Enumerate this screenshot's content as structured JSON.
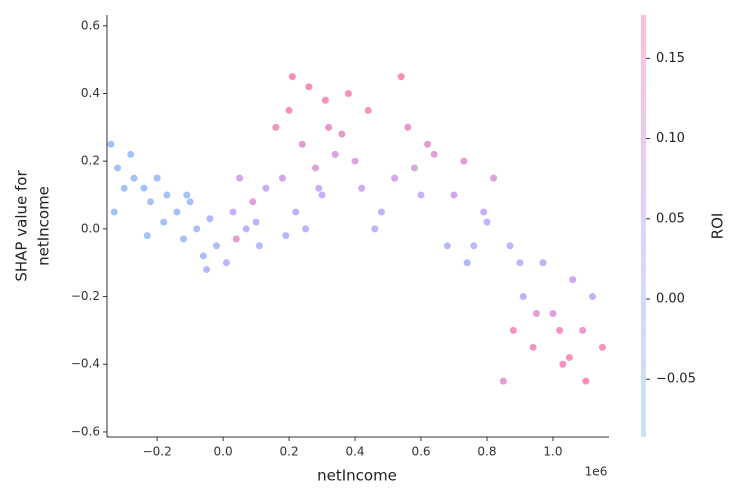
{
  "chart_data": {
    "type": "scatter",
    "xlabel": "netIncome",
    "ylabel": [
      "SHAP value for",
      "netIncome"
    ],
    "x_offset_label": "1e6",
    "colorbar_label": "ROI",
    "colormap": [
      "#1e88e5",
      "#7c52ff",
      "#ff0052"
    ],
    "xlim": [
      -0.352,
      1.17
    ],
    "ylim": [
      -0.615,
      0.632
    ],
    "clim": [
      -0.086,
      0.177
    ],
    "xticks": [
      {
        "value": -0.2,
        "label": "−0.2"
      },
      {
        "value": 0,
        "label": "0.0"
      },
      0.2,
      0.4,
      0.6,
      0.8,
      {
        "value": 1,
        "label": "1.0"
      }
    ],
    "yticks": [
      {
        "value": -0.6,
        "label": "−0.6"
      },
      {
        "value": -0.4,
        "label": "−0.4"
      },
      {
        "value": -0.2,
        "label": "−0.2"
      },
      {
        "value": 0,
        "label": "0.0"
      },
      0.2,
      0.4,
      0.6
    ],
    "cticks": [
      {
        "value": -0.05,
        "label": "−0.05"
      },
      {
        "value": 0,
        "label": "0.00"
      },
      0.05,
      {
        "value": 0.1,
        "label": "0.10"
      },
      0.15
    ],
    "x": [
      -0.34,
      -0.32,
      -0.3,
      -0.28,
      -0.33,
      -0.27,
      -0.24,
      -0.22,
      -0.2,
      -0.18,
      -0.23,
      -0.17,
      -0.14,
      -0.12,
      -0.1,
      -0.08,
      -0.06,
      -0.04,
      -0.02,
      -0.11,
      -0.05,
      0.01,
      0.03,
      0.05,
      0.07,
      0.09,
      0.11,
      0.13,
      0.04,
      0.1,
      0.16,
      0.18,
      0.2,
      0.22,
      0.24,
      0.26,
      0.28,
      0.3,
      0.32,
      0.34,
      0.19,
      0.25,
      0.31,
      0.21,
      0.29,
      0.36,
      0.4,
      0.44,
      0.48,
      0.52,
      0.56,
      0.6,
      0.64,
      0.68,
      0.38,
      0.46,
      0.54,
      0.62,
      0.42,
      0.58,
      0.7,
      0.73,
      0.76,
      0.79,
      0.82,
      0.74,
      0.8,
      0.85,
      0.88,
      0.91,
      0.94,
      0.97,
      1.0,
      1.03,
      1.06,
      1.09,
      1.12,
      1.15,
      0.87,
      0.95,
      1.02,
      1.1,
      0.9,
      1.05
    ],
    "values": [
      0.25,
      0.18,
      0.12,
      0.22,
      0.05,
      0.15,
      0.12,
      0.08,
      0.15,
      0.02,
      -0.02,
      0.1,
      0.05,
      -0.03,
      0.08,
      0.0,
      -0.08,
      0.03,
      -0.05,
      0.1,
      -0.12,
      -0.1,
      0.05,
      0.15,
      0.0,
      0.08,
      -0.05,
      0.12,
      -0.03,
      0.02,
      0.3,
      0.15,
      0.35,
      0.05,
      0.25,
      0.42,
      0.18,
      0.1,
      0.3,
      0.22,
      -0.02,
      0.0,
      0.38,
      0.45,
      0.12,
      0.28,
      0.2,
      0.35,
      0.05,
      0.15,
      0.3,
      0.1,
      0.22,
      -0.05,
      0.4,
      0.0,
      0.45,
      0.25,
      0.12,
      0.18,
      0.1,
      0.2,
      -0.05,
      0.05,
      0.15,
      -0.1,
      0.02,
      -0.45,
      -0.3,
      -0.2,
      -0.35,
      -0.1,
      -0.25,
      -0.4,
      -0.15,
      -0.3,
      -0.2,
      -0.35,
      -0.05,
      -0.25,
      -0.3,
      -0.45,
      -0.1,
      -0.38
    ],
    "color_values": [
      -0.07,
      -0.06,
      -0.05,
      -0.06,
      -0.07,
      -0.05,
      -0.06,
      -0.05,
      -0.04,
      -0.06,
      -0.05,
      -0.04,
      -0.05,
      -0.03,
      -0.04,
      -0.02,
      -0.03,
      -0.01,
      -0.02,
      -0.04,
      0.0,
      0.02,
      0.05,
      0.08,
      0.03,
      0.1,
      0.0,
      0.06,
      0.12,
      0.04,
      0.15,
      0.08,
      0.16,
      0.02,
      0.12,
      0.17,
      0.1,
      0.05,
      0.14,
      0.09,
      0.0,
      0.03,
      0.16,
      0.17,
      0.06,
      0.13,
      0.1,
      0.15,
      0.02,
      0.08,
      0.14,
      0.05,
      0.11,
      0.0,
      0.16,
      0.03,
      0.17,
      0.12,
      0.07,
      0.09,
      0.08,
      0.12,
      0.01,
      0.05,
      0.1,
      -0.01,
      0.04,
      0.12,
      0.15,
      0.05,
      0.14,
      0.02,
      0.1,
      0.16,
      0.08,
      0.13,
      0.06,
      0.15,
      0.03,
      0.11,
      0.14,
      0.17,
      0.04,
      0.16
    ]
  }
}
